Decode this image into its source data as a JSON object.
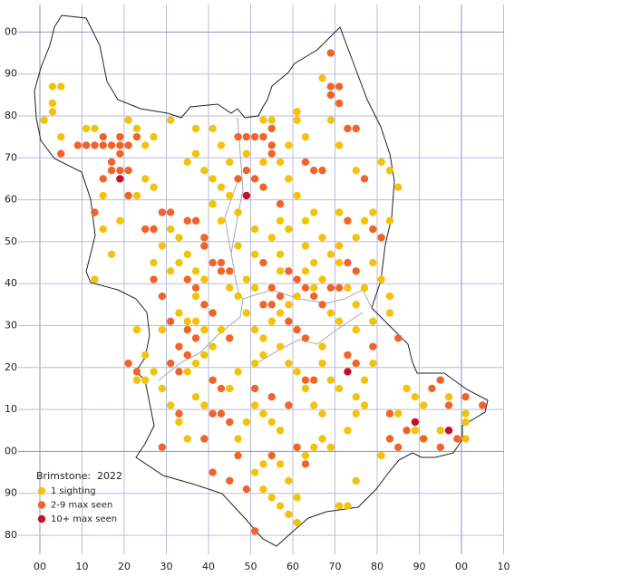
{
  "chart_data": {
    "type": "scatter",
    "xlim": [
      0,
      110
    ],
    "ylim": [
      -20,
      100
    ],
    "xticks": [
      {
        "value": 0,
        "label": "00"
      },
      10,
      20,
      30,
      40,
      50,
      60,
      70,
      80,
      90,
      {
        "value": 100,
        "label": "00"
      },
      {
        "value": 110,
        "label": "10"
      }
    ],
    "yticks": [
      {
        "value": 100,
        "label": "00"
      },
      90,
      80,
      70,
      60,
      50,
      40,
      30,
      20,
      10,
      {
        "value": 0,
        "label": "00"
      },
      {
        "value": -10,
        "label": "90"
      },
      {
        "value": -20,
        "label": "80"
      }
    ],
    "major_lines": [
      0,
      100
    ],
    "grid": true,
    "legend": {
      "title": "Brimstone:  2022",
      "corner": "bottom-left"
    },
    "series": [
      {
        "name": "1 sighting",
        "color": "#f4c20d",
        "points": [
          [
            1,
            79
          ],
          [
            3,
            87
          ],
          [
            5,
            87
          ],
          [
            3,
            83
          ],
          [
            3,
            81
          ],
          [
            5,
            75
          ],
          [
            11,
            77
          ],
          [
            13,
            77
          ],
          [
            21,
            79
          ],
          [
            23,
            77
          ],
          [
            25,
            73
          ],
          [
            27,
            75
          ],
          [
            31,
            79
          ],
          [
            37,
            77
          ],
          [
            37,
            71
          ],
          [
            35,
            69
          ],
          [
            39,
            67
          ],
          [
            41,
            65
          ],
          [
            43,
            63
          ],
          [
            45,
            61
          ],
          [
            25,
            65
          ],
          [
            27,
            63
          ],
          [
            15,
            61
          ],
          [
            19,
            55
          ],
          [
            15,
            53
          ],
          [
            17,
            47
          ],
          [
            13,
            41
          ],
          [
            27,
            45
          ],
          [
            29,
            49
          ],
          [
            31,
            53
          ],
          [
            33,
            51
          ],
          [
            35,
            47
          ],
          [
            37,
            43
          ],
          [
            39,
            41
          ],
          [
            37,
            37
          ],
          [
            33,
            33
          ],
          [
            35,
            31
          ],
          [
            29,
            29
          ],
          [
            25,
            23
          ],
          [
            27,
            19
          ],
          [
            25,
            17
          ],
          [
            29,
            15
          ],
          [
            31,
            11
          ],
          [
            33,
            7
          ],
          [
            37,
            13
          ],
          [
            39,
            11
          ],
          [
            45,
            15
          ],
          [
            47,
            19
          ],
          [
            51,
            21
          ],
          [
            53,
            23
          ],
          [
            57,
            25
          ],
          [
            59,
            21
          ],
          [
            61,
            19
          ],
          [
            63,
            15
          ],
          [
            65,
            11
          ],
          [
            67,
            9
          ],
          [
            69,
            17
          ],
          [
            71,
            15
          ],
          [
            67,
            21
          ],
          [
            67,
            25
          ],
          [
            71,
            31
          ],
          [
            75,
            29
          ],
          [
            79,
            31
          ],
          [
            83,
            37
          ],
          [
            83,
            33
          ],
          [
            81,
            41
          ],
          [
            79,
            45
          ],
          [
            79,
            57
          ],
          [
            83,
            55
          ],
          [
            85,
            63
          ],
          [
            83,
            67
          ],
          [
            81,
            69
          ],
          [
            75,
            67
          ],
          [
            71,
            73
          ],
          [
            69,
            79
          ],
          [
            67,
            89
          ],
          [
            63,
            75
          ],
          [
            61,
            81
          ],
          [
            61,
            79
          ],
          [
            59,
            73
          ],
          [
            57,
            69
          ],
          [
            59,
            65
          ],
          [
            61,
            61
          ],
          [
            63,
            55
          ],
          [
            65,
            57
          ],
          [
            67,
            51
          ],
          [
            69,
            47
          ],
          [
            63,
            49
          ],
          [
            59,
            53
          ],
          [
            55,
            51
          ],
          [
            51,
            47
          ],
          [
            47,
            49
          ],
          [
            43,
            55
          ],
          [
            41,
            59
          ],
          [
            45,
            69
          ],
          [
            53,
            79
          ],
          [
            55,
            79
          ],
          [
            41,
            77
          ],
          [
            43,
            73
          ],
          [
            49,
            71
          ],
          [
            45,
            39
          ],
          [
            47,
            37
          ],
          [
            49,
            33
          ],
          [
            51,
            29
          ],
          [
            53,
            27
          ],
          [
            55,
            31
          ],
          [
            57,
            33
          ],
          [
            59,
            35
          ],
          [
            61,
            37
          ],
          [
            63,
            43
          ],
          [
            65,
            45
          ],
          [
            67,
            41
          ],
          [
            73,
            39
          ],
          [
            75,
            35
          ],
          [
            77,
            39
          ],
          [
            79,
            21
          ],
          [
            77,
            17
          ],
          [
            75,
            13
          ],
          [
            75,
            9
          ],
          [
            73,
            5
          ],
          [
            69,
            1
          ],
          [
            71,
            -13
          ],
          [
            73,
            -13
          ],
          [
            75,
            -7
          ],
          [
            81,
            -1
          ],
          [
            87,
            15
          ],
          [
            91,
            11
          ],
          [
            89,
            5
          ],
          [
            95,
            5
          ],
          [
            97,
            13
          ],
          [
            101,
            9
          ],
          [
            101,
            7
          ],
          [
            101,
            3
          ],
          [
            89,
            13
          ],
          [
            59,
            -15
          ],
          [
            61,
            -17
          ],
          [
            57,
            -13
          ],
          [
            55,
            -11
          ],
          [
            53,
            -9
          ],
          [
            51,
            -5
          ],
          [
            53,
            -3
          ],
          [
            57,
            -3
          ],
          [
            59,
            -7
          ],
          [
            61,
            -11
          ],
          [
            63,
            -1
          ],
          [
            65,
            1
          ],
          [
            67,
            3
          ],
          [
            57,
            5
          ],
          [
            55,
            7
          ],
          [
            53,
            9
          ],
          [
            51,
            11
          ],
          [
            49,
            7
          ],
          [
            47,
            3
          ],
          [
            35,
            3
          ],
          [
            35,
            19
          ],
          [
            37,
            21
          ],
          [
            39,
            23
          ],
          [
            41,
            25
          ],
          [
            43,
            29
          ],
          [
            39,
            29
          ],
          [
            31,
            43
          ],
          [
            33,
            45
          ],
          [
            37,
            31
          ],
          [
            23,
            17
          ],
          [
            23,
            61
          ],
          [
            23,
            29
          ],
          [
            53,
            69
          ],
          [
            57,
            43
          ],
          [
            47,
            57
          ],
          [
            51,
            53
          ],
          [
            57,
            55
          ],
          [
            71,
            57
          ],
          [
            77,
            55
          ],
          [
            75,
            51
          ],
          [
            71,
            49
          ],
          [
            71,
            45
          ],
          [
            69,
            33
          ],
          [
            77,
            11
          ],
          [
            85,
            9
          ],
          [
            51,
            39
          ],
          [
            49,
            41
          ],
          [
            57,
            47
          ],
          [
            65,
            39
          ]
        ]
      },
      {
        "name": "2-9 max seen",
        "color": "#f0642a",
        "points": [
          [
            5,
            71
          ],
          [
            9,
            73
          ],
          [
            11,
            73
          ],
          [
            13,
            73
          ],
          [
            15,
            73
          ],
          [
            17,
            73
          ],
          [
            19,
            73
          ],
          [
            21,
            73
          ],
          [
            15,
            75
          ],
          [
            19,
            75
          ],
          [
            23,
            75
          ],
          [
            17,
            69
          ],
          [
            19,
            71
          ],
          [
            17,
            67
          ],
          [
            19,
            67
          ],
          [
            21,
            67
          ],
          [
            15,
            65
          ],
          [
            21,
            61
          ],
          [
            13,
            57
          ],
          [
            29,
            57
          ],
          [
            31,
            57
          ],
          [
            25,
            53
          ],
          [
            27,
            53
          ],
          [
            35,
            55
          ],
          [
            37,
            55
          ],
          [
            39,
            51
          ],
          [
            39,
            49
          ],
          [
            41,
            45
          ],
          [
            43,
            43
          ],
          [
            45,
            43
          ],
          [
            43,
            45
          ],
          [
            47,
            75
          ],
          [
            49,
            75
          ],
          [
            51,
            75
          ],
          [
            53,
            75
          ],
          [
            55,
            73
          ],
          [
            55,
            77
          ],
          [
            55,
            71
          ],
          [
            49,
            67
          ],
          [
            51,
            65
          ],
          [
            53,
            63
          ],
          [
            47,
            65
          ],
          [
            57,
            59
          ],
          [
            63,
            69
          ],
          [
            65,
            67
          ],
          [
            67,
            67
          ],
          [
            69,
            95
          ],
          [
            69,
            87
          ],
          [
            71,
            87
          ],
          [
            69,
            85
          ],
          [
            71,
            83
          ],
          [
            73,
            77
          ],
          [
            75,
            77
          ],
          [
            77,
            65
          ],
          [
            73,
            55
          ],
          [
            79,
            53
          ],
          [
            81,
            51
          ],
          [
            75,
            43
          ],
          [
            73,
            45
          ],
          [
            59,
            43
          ],
          [
            61,
            41
          ],
          [
            63,
            39
          ],
          [
            65,
            37
          ],
          [
            67,
            35
          ],
          [
            69,
            39
          ],
          [
            71,
            39
          ],
          [
            57,
            37
          ],
          [
            55,
            35
          ],
          [
            53,
            35
          ],
          [
            39,
            35
          ],
          [
            41,
            33
          ],
          [
            35,
            29
          ],
          [
            37,
            27
          ],
          [
            33,
            25
          ],
          [
            31,
            21
          ],
          [
            33,
            19
          ],
          [
            35,
            23
          ],
          [
            41,
            17
          ],
          [
            43,
            15
          ],
          [
            51,
            15
          ],
          [
            55,
            13
          ],
          [
            59,
            11
          ],
          [
            41,
            9
          ],
          [
            43,
            9
          ],
          [
            45,
            7
          ],
          [
            39,
            3
          ],
          [
            41,
            -5
          ],
          [
            45,
            -7
          ],
          [
            47,
            -1
          ],
          [
            55,
            -1
          ],
          [
            61,
            1
          ],
          [
            63,
            -3
          ],
          [
            49,
            -9
          ],
          [
            51,
            -19
          ],
          [
            79,
            25
          ],
          [
            85,
            27
          ],
          [
            83,
            9
          ],
          [
            87,
            5
          ],
          [
            85,
            1
          ],
          [
            91,
            3
          ],
          [
            95,
            1
          ],
          [
            93,
            15
          ],
          [
            95,
            17
          ],
          [
            97,
            11
          ],
          [
            101,
            13
          ],
          [
            105,
            11
          ],
          [
            63,
            17
          ],
          [
            65,
            17
          ],
          [
            75,
            21
          ],
          [
            73,
            23
          ],
          [
            21,
            21
          ],
          [
            23,
            19
          ],
          [
            31,
            31
          ],
          [
            29,
            37
          ],
          [
            27,
            41
          ],
          [
            35,
            41
          ],
          [
            37,
            39
          ],
          [
            33,
            9
          ],
          [
            29,
            1
          ],
          [
            61,
            29
          ],
          [
            63,
            27
          ],
          [
            59,
            31
          ],
          [
            45,
            27
          ],
          [
            53,
            45
          ],
          [
            55,
            39
          ],
          [
            83,
            3
          ],
          [
            99,
            3
          ]
        ]
      },
      {
        "name": "10+ max seen",
        "color": "#c4102e",
        "points": [
          [
            19,
            65
          ],
          [
            49,
            61
          ],
          [
            73,
            19
          ],
          [
            89,
            7
          ],
          [
            97,
            5
          ]
        ]
      }
    ]
  }
}
